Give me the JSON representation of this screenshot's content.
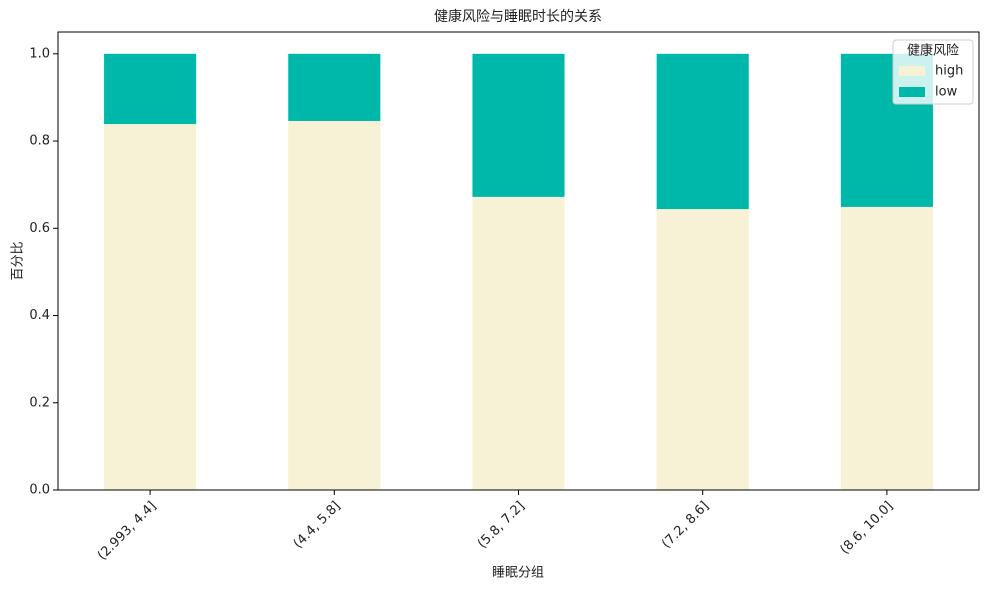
{
  "chart_data": {
    "type": "stacked_bar",
    "title": "健康风险与睡眠时长的关系",
    "x_label": "睡眠分组",
    "y_label": "百分比",
    "categories": [
      "(2.993, 4.4]",
      "(4.4, 5.8]",
      "(5.8, 7.2]",
      "(7.2, 8.6]",
      "(8.6, 10.0]"
    ],
    "series": [
      {
        "name": "high",
        "color": "#f7f1d5",
        "values": [
          0.839,
          0.846,
          0.672,
          0.644,
          0.649
        ]
      },
      {
        "name": "low",
        "color": "#00b8aa",
        "values": [
          0.161,
          0.154,
          0.328,
          0.356,
          0.351
        ]
      }
    ],
    "legend_title": "健康风险",
    "legend": "upper right",
    "ylim": [
      0,
      1.05
    ],
    "yticks": [
      {
        "value": 0,
        "label": "0.0"
      },
      {
        "value": 0.2,
        "label": "0.2"
      },
      {
        "value": 0.4,
        "label": "0.4"
      },
      {
        "value": 0.6,
        "label": "0.6"
      },
      {
        "value": 0.8,
        "label": "0.8"
      },
      {
        "value": 1,
        "label": "1.0"
      }
    ]
  }
}
